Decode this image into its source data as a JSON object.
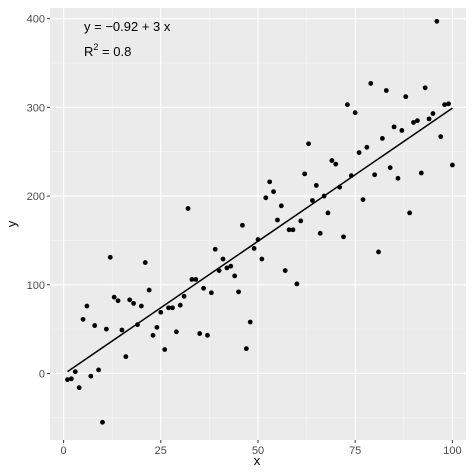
{
  "chart_data": {
    "type": "scatter",
    "xlabel": "x",
    "ylabel": "y",
    "xlim": [
      -3.5,
      103.5
    ],
    "ylim": [
      -75,
      412
    ],
    "xticks": [
      0,
      25,
      50,
      75,
      100
    ],
    "yticks": [
      0,
      100,
      200,
      300,
      400
    ],
    "grid": true,
    "points": [
      [
        1,
        -7
      ],
      [
        2,
        -6
      ],
      [
        3,
        2
      ],
      [
        4,
        -16
      ],
      [
        5,
        61
      ],
      [
        6,
        76
      ],
      [
        7,
        -3
      ],
      [
        8,
        54
      ],
      [
        9,
        4
      ],
      [
        10,
        -55
      ],
      [
        11,
        50
      ],
      [
        12,
        131
      ],
      [
        13,
        86
      ],
      [
        14,
        82
      ],
      [
        15,
        49
      ],
      [
        16,
        19
      ],
      [
        17,
        83
      ],
      [
        18,
        79
      ],
      [
        19,
        55
      ],
      [
        20,
        76
      ],
      [
        21,
        125
      ],
      [
        22,
        94
      ],
      [
        23,
        43
      ],
      [
        24,
        52
      ],
      [
        25,
        69
      ],
      [
        26,
        27
      ],
      [
        27,
        74
      ],
      [
        28,
        74
      ],
      [
        29,
        47
      ],
      [
        30,
        77
      ],
      [
        31,
        87
      ],
      [
        32,
        186
      ],
      [
        33,
        106
      ],
      [
        34,
        106
      ],
      [
        35,
        45
      ],
      [
        36,
        96
      ],
      [
        37,
        43
      ],
      [
        38,
        91
      ],
      [
        39,
        140
      ],
      [
        40,
        116
      ],
      [
        41,
        129
      ],
      [
        42,
        119
      ],
      [
        43,
        121
      ],
      [
        44,
        110
      ],
      [
        45,
        92
      ],
      [
        46,
        167
      ],
      [
        47,
        28
      ],
      [
        48,
        58
      ],
      [
        49,
        141
      ],
      [
        50,
        151
      ],
      [
        51,
        129
      ],
      [
        52,
        198
      ],
      [
        53,
        216
      ],
      [
        54,
        205
      ],
      [
        55,
        173
      ],
      [
        56,
        189
      ],
      [
        57,
        116
      ],
      [
        58,
        162
      ],
      [
        59,
        162
      ],
      [
        60,
        101
      ],
      [
        61,
        172
      ],
      [
        62,
        225
      ],
      [
        63,
        259
      ],
      [
        64,
        195
      ],
      [
        65,
        212
      ],
      [
        66,
        158
      ],
      [
        67,
        200
      ],
      [
        68,
        181
      ],
      [
        69,
        240
      ],
      [
        70,
        236
      ],
      [
        71,
        210
      ],
      [
        72,
        154
      ],
      [
        73,
        303
      ],
      [
        74,
        223
      ],
      [
        75,
        294
      ],
      [
        76,
        249
      ],
      [
        77,
        196
      ],
      [
        78,
        255
      ],
      [
        79,
        327
      ],
      [
        80,
        224
      ],
      [
        81,
        137
      ],
      [
        82,
        265
      ],
      [
        83,
        319
      ],
      [
        84,
        232
      ],
      [
        85,
        278
      ],
      [
        86,
        220
      ],
      [
        87,
        274
      ],
      [
        88,
        312
      ],
      [
        89,
        181
      ],
      [
        90,
        283
      ],
      [
        91,
        285
      ],
      [
        92,
        226
      ],
      [
        93,
        322
      ],
      [
        94,
        287
      ],
      [
        95,
        293
      ],
      [
        96,
        397
      ],
      [
        97,
        267
      ],
      [
        98,
        303
      ],
      [
        99,
        304
      ],
      [
        100,
        235
      ]
    ],
    "fit_line": {
      "intercept": -0.92,
      "slope": 3,
      "x_range": [
        1,
        100
      ]
    },
    "annotations": {
      "equation": "y = −0.92 + 3 x",
      "r2_prefix": "R",
      "r2_sup": "2",
      "r2_suffix": " = 0.8"
    },
    "colors": {
      "panel": "#ebebeb",
      "grid_major": "#ffffff",
      "points": "#000000",
      "line": "#000000"
    }
  }
}
